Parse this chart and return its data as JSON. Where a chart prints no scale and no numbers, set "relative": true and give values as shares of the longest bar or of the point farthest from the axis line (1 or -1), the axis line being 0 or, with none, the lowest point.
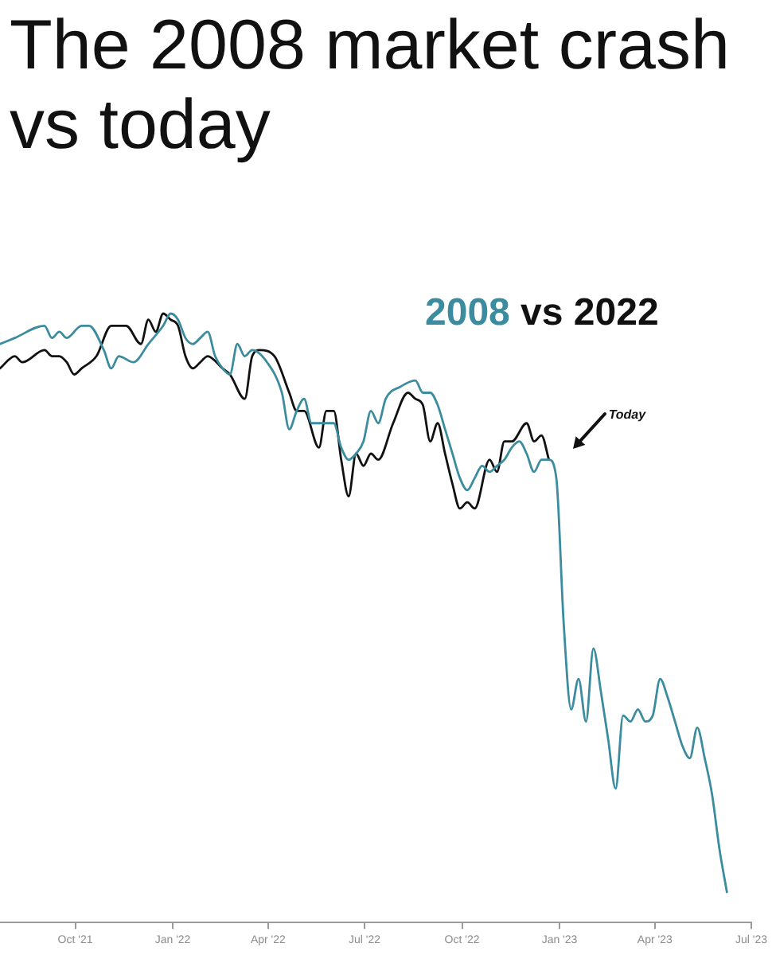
{
  "chart_data": {
    "type": "line",
    "title": "The 2008 market crash vs today",
    "subtitle": "2008 vs 2022",
    "relative": true,
    "xlim": [
      "2021-07-22",
      "2023-07-01"
    ],
    "xticks": [
      {
        "value": "2021-10-01",
        "label": "Oct '21"
      },
      {
        "value": "2022-01-01",
        "label": "Jan '22"
      },
      {
        "value": "2022-04-01",
        "label": "Apr '22"
      },
      {
        "value": "2022-07-01",
        "label": "Jul '22"
      },
      {
        "value": "2022-10-01",
        "label": "Oct '22"
      },
      {
        "value": "2023-01-01",
        "label": "Jan '23"
      },
      {
        "value": "2023-04-01",
        "label": "Apr '23"
      },
      {
        "value": "2023-07-01",
        "label": "Jul '23"
      }
    ],
    "series": [
      {
        "color": "#3a8c9e",
        "x": [
          "2021-07-22",
          "2021-08-05",
          "2021-09-02",
          "2021-09-09",
          "2021-09-16",
          "2021-09-23",
          "2021-10-07",
          "2021-10-14",
          "2021-10-28",
          "2021-11-04",
          "2021-11-11",
          "2021-11-25",
          "2021-12-09",
          "2021-12-23",
          "2021-12-30",
          "2022-01-06",
          "2022-01-13",
          "2022-01-20",
          "2022-01-27",
          "2022-02-03",
          "2022-02-10",
          "2022-02-17",
          "2022-02-24",
          "2022-03-03",
          "2022-03-10",
          "2022-03-17",
          "2022-03-31",
          "2022-04-14",
          "2022-04-21",
          "2022-04-28",
          "2022-05-05",
          "2022-05-12",
          "2022-05-19",
          "2022-05-26",
          "2022-06-02",
          "2022-06-09",
          "2022-06-16",
          "2022-06-23",
          "2022-06-30",
          "2022-07-07",
          "2022-07-14",
          "2022-07-21",
          "2022-08-04",
          "2022-08-18",
          "2022-08-25",
          "2022-09-01",
          "2022-09-08",
          "2022-09-15",
          "2022-09-22",
          "2022-09-29",
          "2022-10-06",
          "2022-10-13",
          "2022-10-20",
          "2022-10-27",
          "2022-11-03",
          "2022-11-10",
          "2022-11-17",
          "2022-11-24",
          "2022-12-01",
          "2022-12-08",
          "2022-12-15",
          "2022-12-22",
          "2022-12-29",
          "2023-01-05",
          "2023-01-12",
          "2023-01-19",
          "2023-01-26",
          "2023-02-02",
          "2023-02-09",
          "2023-02-16",
          "2023-02-23",
          "2023-03-02",
          "2023-03-09",
          "2023-03-16",
          "2023-03-23",
          "2023-03-30",
          "2023-04-06",
          "2023-04-13",
          "2023-04-20",
          "2023-04-27",
          "2023-05-04",
          "2023-05-11",
          "2023-05-18",
          "2023-05-25",
          "2023-06-01",
          "2023-06-08"
        ],
        "values": [
          0.95,
          0.96,
          0.98,
          0.96,
          0.97,
          0.96,
          0.98,
          0.98,
          0.94,
          0.91,
          0.93,
          0.92,
          0.95,
          0.98,
          1.0,
          0.99,
          0.96,
          0.95,
          0.96,
          0.97,
          0.93,
          0.91,
          0.9,
          0.95,
          0.93,
          0.94,
          0.92,
          0.87,
          0.81,
          0.84,
          0.86,
          0.82,
          0.82,
          0.82,
          0.82,
          0.78,
          0.76,
          0.77,
          0.79,
          0.84,
          0.82,
          0.86,
          0.88,
          0.89,
          0.87,
          0.87,
          0.85,
          0.81,
          0.77,
          0.73,
          0.71,
          0.73,
          0.75,
          0.74,
          0.75,
          0.76,
          0.78,
          0.79,
          0.77,
          0.74,
          0.76,
          0.76,
          0.73,
          0.49,
          0.35,
          0.4,
          0.33,
          0.45,
          0.38,
          0.3,
          0.22,
          0.34,
          0.33,
          0.35,
          0.33,
          0.34,
          0.4,
          0.37,
          0.33,
          0.29,
          0.27,
          0.32,
          0.27,
          0.21,
          0.12,
          0.05
        ]
      },
      {
        "color": "#111111",
        "x": [
          "2021-07-22",
          "2021-08-05",
          "2021-08-12",
          "2021-09-02",
          "2021-09-09",
          "2021-09-16",
          "2021-09-23",
          "2021-09-30",
          "2021-10-07",
          "2021-10-21",
          "2021-11-04",
          "2021-11-18",
          "2021-12-02",
          "2021-12-09",
          "2021-12-16",
          "2021-12-23",
          "2021-12-30",
          "2022-01-06",
          "2022-01-13",
          "2022-01-20",
          "2022-01-27",
          "2022-02-03",
          "2022-02-17",
          "2022-02-24",
          "2022-03-10",
          "2022-03-17",
          "2022-03-24",
          "2022-04-07",
          "2022-04-21",
          "2022-04-28",
          "2022-05-05",
          "2022-05-19",
          "2022-05-26",
          "2022-06-02",
          "2022-06-09",
          "2022-06-16",
          "2022-06-23",
          "2022-06-30",
          "2022-07-07",
          "2022-07-14",
          "2022-07-28",
          "2022-08-11",
          "2022-08-18",
          "2022-08-25",
          "2022-09-01",
          "2022-09-08",
          "2022-09-15",
          "2022-09-22",
          "2022-09-29",
          "2022-10-06",
          "2022-10-13",
          "2022-10-27",
          "2022-11-03",
          "2022-11-10",
          "2022-11-17",
          "2022-12-01",
          "2022-12-08",
          "2022-12-15",
          "2022-12-22"
        ],
        "values": [
          0.91,
          0.93,
          0.92,
          0.94,
          0.93,
          0.93,
          0.92,
          0.9,
          0.91,
          0.93,
          0.98,
          0.98,
          0.95,
          0.99,
          0.97,
          1.0,
          0.99,
          0.98,
          0.93,
          0.91,
          0.92,
          0.93,
          0.91,
          0.9,
          0.86,
          0.93,
          0.94,
          0.93,
          0.87,
          0.84,
          0.84,
          0.78,
          0.84,
          0.84,
          0.76,
          0.7,
          0.77,
          0.75,
          0.77,
          0.76,
          0.82,
          0.87,
          0.86,
          0.85,
          0.79,
          0.82,
          0.77,
          0.72,
          0.68,
          0.69,
          0.68,
          0.76,
          0.74,
          0.79,
          0.79,
          0.82,
          0.79,
          0.8,
          0.76
        ]
      }
    ],
    "annotations": [
      "Today"
    ]
  }
}
